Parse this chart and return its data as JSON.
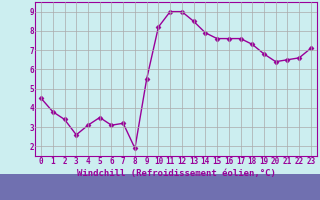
{
  "x": [
    0,
    1,
    2,
    3,
    4,
    5,
    6,
    7,
    8,
    9,
    10,
    11,
    12,
    13,
    14,
    15,
    16,
    17,
    18,
    19,
    20,
    21,
    22,
    23
  ],
  "y": [
    4.5,
    3.8,
    3.4,
    2.6,
    3.1,
    3.5,
    3.1,
    3.2,
    1.9,
    5.5,
    8.2,
    9.0,
    9.0,
    8.5,
    7.9,
    7.6,
    7.6,
    7.6,
    7.3,
    6.8,
    6.4,
    6.5,
    6.6,
    7.1
  ],
  "line_color": "#990099",
  "marker": "D",
  "markersize": 2.5,
  "linewidth": 1.0,
  "xlabel": "Windchill (Refroidissement éolien,°C)",
  "ylim": [
    1.5,
    9.5
  ],
  "xlim": [
    -0.5,
    23.5
  ],
  "yticks": [
    2,
    3,
    4,
    5,
    6,
    7,
    8,
    9
  ],
  "xticks": [
    0,
    1,
    2,
    3,
    4,
    5,
    6,
    7,
    8,
    9,
    10,
    11,
    12,
    13,
    14,
    15,
    16,
    17,
    18,
    19,
    20,
    21,
    22,
    23
  ],
  "grid_color": "#aaaaaa",
  "bg_color": "#cceef0",
  "tick_color": "#990099",
  "xlabel_bg": "#7070b0",
  "tick_fontsize": 5.5,
  "xlabel_fontsize": 6.5
}
